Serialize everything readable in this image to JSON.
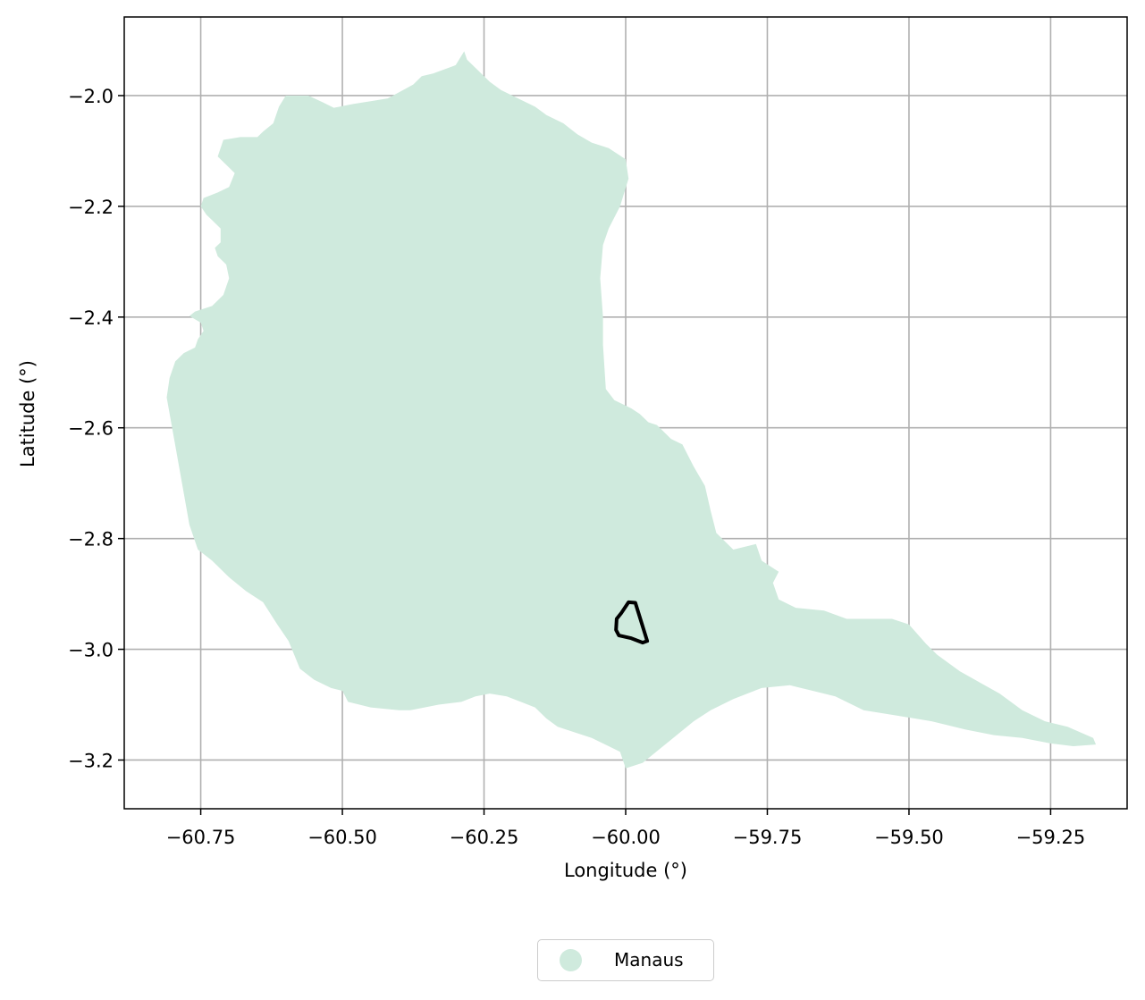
{
  "map": {
    "region_fill": "#cfeadd",
    "outline_color": "#000000",
    "grid": true,
    "grid_color": "#b0b0b0"
  },
  "chart_data": {
    "type": "map",
    "xlabel": "Longitude (°)",
    "ylabel": "Latitude (°)",
    "xlim": [
      -60.885,
      -59.115
    ],
    "ylim": [
      -3.288,
      -1.858
    ],
    "xticks": [
      -60.75,
      -60.5,
      -60.25,
      -60.0,
      -59.75,
      -59.5,
      -59.25
    ],
    "yticks": [
      -2.0,
      -2.2,
      -2.4,
      -2.6,
      -2.8,
      -3.0,
      -3.2
    ],
    "xtick_labels": [
      "−60.75",
      "−60.50",
      "−60.25",
      "−60.00",
      "−59.75",
      "−59.50",
      "−59.25"
    ],
    "ytick_labels": [
      "−2.0",
      "−2.2",
      "−2.4",
      "−2.6",
      "−2.8",
      "−3.0",
      "−3.2"
    ],
    "legend": {
      "position": "bottom-center",
      "entries": [
        {
          "label": "Manaus",
          "color": "#cfeadd"
        }
      ]
    },
    "region": {
      "name": "Manaus",
      "color": "#cfeadd",
      "polygon": [
        [
          -60.285,
          -1.92
        ],
        [
          -60.3,
          -1.945
        ],
        [
          -60.34,
          -1.96
        ],
        [
          -60.36,
          -1.965
        ],
        [
          -60.375,
          -1.98
        ],
        [
          -60.42,
          -2.005
        ],
        [
          -60.45,
          -2.01
        ],
        [
          -60.48,
          -2.015
        ],
        [
          -60.515,
          -2.022
        ],
        [
          -60.535,
          -2.012
        ],
        [
          -60.56,
          -2.0
        ],
        [
          -60.6,
          -2.0
        ],
        [
          -60.612,
          -2.02
        ],
        [
          -60.622,
          -2.05
        ],
        [
          -60.64,
          -2.065
        ],
        [
          -60.65,
          -2.075
        ],
        [
          -60.68,
          -2.075
        ],
        [
          -60.71,
          -2.08
        ],
        [
          -60.72,
          -2.11
        ],
        [
          -60.69,
          -2.14
        ],
        [
          -60.7,
          -2.165
        ],
        [
          -60.72,
          -2.175
        ],
        [
          -60.745,
          -2.185
        ],
        [
          -60.75,
          -2.2
        ],
        [
          -60.74,
          -2.215
        ],
        [
          -60.73,
          -2.225
        ],
        [
          -60.715,
          -2.24
        ],
        [
          -60.715,
          -2.265
        ],
        [
          -60.725,
          -2.275
        ],
        [
          -60.72,
          -2.29
        ],
        [
          -60.705,
          -2.305
        ],
        [
          -60.7,
          -2.33
        ],
        [
          -60.71,
          -2.36
        ],
        [
          -60.73,
          -2.38
        ],
        [
          -60.76,
          -2.39
        ],
        [
          -60.77,
          -2.398
        ],
        [
          -60.75,
          -2.41
        ],
        [
          -60.745,
          -2.425
        ],
        [
          -60.755,
          -2.44
        ],
        [
          -60.76,
          -2.455
        ],
        [
          -60.78,
          -2.465
        ],
        [
          -60.795,
          -2.48
        ],
        [
          -60.805,
          -2.51
        ],
        [
          -60.81,
          -2.545
        ],
        [
          -60.79,
          -2.66
        ],
        [
          -60.77,
          -2.775
        ],
        [
          -60.755,
          -2.82
        ],
        [
          -60.73,
          -2.84
        ],
        [
          -60.7,
          -2.87
        ],
        [
          -60.67,
          -2.895
        ],
        [
          -60.64,
          -2.915
        ],
        [
          -60.615,
          -2.955
        ],
        [
          -60.595,
          -2.985
        ],
        [
          -60.585,
          -3.01
        ],
        [
          -60.575,
          -3.035
        ],
        [
          -60.55,
          -3.055
        ],
        [
          -60.52,
          -3.07
        ],
        [
          -60.5,
          -3.075
        ],
        [
          -60.49,
          -3.095
        ],
        [
          -60.47,
          -3.1
        ],
        [
          -60.45,
          -3.105
        ],
        [
          -60.4,
          -3.11
        ],
        [
          -60.38,
          -3.11
        ],
        [
          -60.355,
          -3.105
        ],
        [
          -60.33,
          -3.1
        ],
        [
          -60.29,
          -3.095
        ],
        [
          -60.265,
          -3.085
        ],
        [
          -60.24,
          -3.08
        ],
        [
          -60.21,
          -3.085
        ],
        [
          -60.185,
          -3.095
        ],
        [
          -60.16,
          -3.105
        ],
        [
          -60.14,
          -3.125
        ],
        [
          -60.12,
          -3.14
        ],
        [
          -60.09,
          -3.15
        ],
        [
          -60.06,
          -3.16
        ],
        [
          -60.03,
          -3.175
        ],
        [
          -60.01,
          -3.185
        ],
        [
          -60.0,
          -3.215
        ],
        [
          -59.97,
          -3.205
        ],
        [
          -59.94,
          -3.18
        ],
        [
          -59.91,
          -3.155
        ],
        [
          -59.88,
          -3.13
        ],
        [
          -59.85,
          -3.11
        ],
        [
          -59.81,
          -3.09
        ],
        [
          -59.76,
          -3.07
        ],
        [
          -59.71,
          -3.065
        ],
        [
          -59.67,
          -3.075
        ],
        [
          -59.63,
          -3.085
        ],
        [
          -59.58,
          -3.11
        ],
        [
          -59.52,
          -3.12
        ],
        [
          -59.46,
          -3.13
        ],
        [
          -59.4,
          -3.145
        ],
        [
          -59.35,
          -3.155
        ],
        [
          -59.3,
          -3.16
        ],
        [
          -59.25,
          -3.17
        ],
        [
          -59.21,
          -3.175
        ],
        [
          -59.17,
          -3.172
        ],
        [
          -59.175,
          -3.16
        ],
        [
          -59.22,
          -3.14
        ],
        [
          -59.26,
          -3.13
        ],
        [
          -59.3,
          -3.11
        ],
        [
          -59.34,
          -3.08
        ],
        [
          -59.375,
          -3.06
        ],
        [
          -59.41,
          -3.04
        ],
        [
          -59.45,
          -3.01
        ],
        [
          -59.47,
          -2.99
        ],
        [
          -59.5,
          -2.955
        ],
        [
          -59.53,
          -2.945
        ],
        [
          -59.57,
          -2.945
        ],
        [
          -59.61,
          -2.945
        ],
        [
          -59.65,
          -2.93
        ],
        [
          -59.7,
          -2.925
        ],
        [
          -59.73,
          -2.91
        ],
        [
          -59.74,
          -2.88
        ],
        [
          -59.73,
          -2.86
        ],
        [
          -59.76,
          -2.84
        ],
        [
          -59.77,
          -2.81
        ],
        [
          -59.81,
          -2.82
        ],
        [
          -59.84,
          -2.79
        ],
        [
          -59.85,
          -2.75
        ],
        [
          -59.86,
          -2.705
        ],
        [
          -59.88,
          -2.67
        ],
        [
          -59.9,
          -2.63
        ],
        [
          -59.92,
          -2.62
        ],
        [
          -59.935,
          -2.605
        ],
        [
          -59.945,
          -2.595
        ],
        [
          -59.96,
          -2.59
        ],
        [
          -59.975,
          -2.575
        ],
        [
          -59.99,
          -2.565
        ],
        [
          -60.0,
          -2.56
        ],
        [
          -60.02,
          -2.55
        ],
        [
          -60.035,
          -2.53
        ],
        [
          -60.04,
          -2.45
        ],
        [
          -60.04,
          -2.4
        ],
        [
          -60.045,
          -2.33
        ],
        [
          -60.04,
          -2.27
        ],
        [
          -60.03,
          -2.24
        ],
        [
          -60.01,
          -2.2
        ],
        [
          -59.995,
          -2.15
        ],
        [
          -60.0,
          -2.115
        ],
        [
          -60.03,
          -2.095
        ],
        [
          -60.06,
          -2.085
        ],
        [
          -60.085,
          -2.07
        ],
        [
          -60.11,
          -2.05
        ],
        [
          -60.14,
          -2.035
        ],
        [
          -60.16,
          -2.02
        ],
        [
          -60.19,
          -2.005
        ],
        [
          -60.22,
          -1.99
        ],
        [
          -60.24,
          -1.975
        ],
        [
          -60.26,
          -1.955
        ],
        [
          -60.28,
          -1.935
        ]
      ]
    },
    "outline": {
      "color": "#000000",
      "polygon": [
        [
          -60.008,
          -2.935
        ],
        [
          -59.995,
          -2.915
        ],
        [
          -59.983,
          -2.916
        ],
        [
          -59.962,
          -2.985
        ],
        [
          -59.97,
          -2.988
        ],
        [
          -59.99,
          -2.98
        ],
        [
          -60.012,
          -2.975
        ],
        [
          -60.017,
          -2.965
        ],
        [
          -60.016,
          -2.945
        ],
        [
          -60.012,
          -2.94
        ]
      ]
    }
  }
}
